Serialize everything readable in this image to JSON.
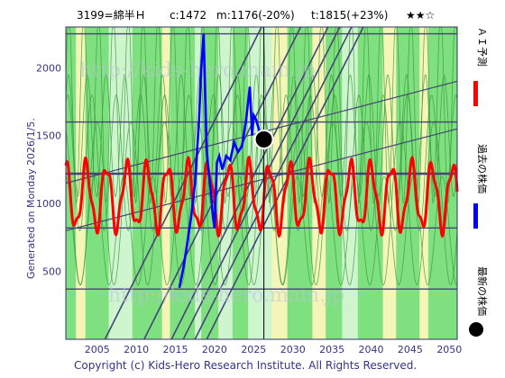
{
  "header": {
    "stock": "3199=綿半Ｈ",
    "current": "c:1472",
    "mid": "m:1176(-20%)",
    "target": "t:1815(+23%)",
    "rating": "★★☆"
  },
  "side_label": "Generated on Monday 2026/1/5.",
  "copyright": "Copyright (c) Kids-Hero Research Institute. All Rights Reserved.",
  "watermark": "http://kids-hero.main.jp",
  "legend": [
    {
      "label": "ＡＩ予測",
      "color": "#ff0000"
    },
    {
      "label": "過去の株価",
      "color": "#0000ff"
    },
    {
      "label": "最新の株価",
      "color": "#000000"
    }
  ],
  "colors": {
    "band_green": "#7ee07e",
    "band_light": "#cff5cf",
    "band_yellow": "#f5f5b8",
    "grid": "#444477",
    "thin_green": "#3a9a3a",
    "axis_text": "#333388"
  },
  "chart_data": {
    "type": "line",
    "xlim": [
      2001,
      2051
    ],
    "ylim": [
      0,
      2300
    ],
    "x_ticks": [
      2005,
      2010,
      2015,
      2020,
      2025,
      2030,
      2035,
      2040,
      2045,
      2050
    ],
    "y_ticks": [
      500,
      1000,
      1500,
      2000
    ],
    "h_levels": [
      370,
      820,
      1220,
      1600,
      2250
    ],
    "series": [
      {
        "name": "過去の株価",
        "color": "#0000ff",
        "x": [
          2015.5,
          2016.0,
          2016.5,
          2017.0,
          2017.5,
          2018.0,
          2018.3,
          2018.6,
          2018.8,
          2019.0,
          2019.2,
          2019.5,
          2019.8,
          2020.0,
          2020.3,
          2020.6,
          2021.0,
          2021.5,
          2022.0,
          2022.5,
          2023.0,
          2023.5,
          2024.0,
          2024.5,
          2024.8,
          2025.0,
          2025.3,
          2025.6,
          2026.0
        ],
        "y": [
          380,
          520,
          700,
          900,
          1150,
          1600,
          2000,
          2250,
          1800,
          1400,
          1250,
          1100,
          900,
          820,
          1300,
          1350,
          1250,
          1350,
          1320,
          1450,
          1380,
          1420,
          1600,
          1860,
          1500,
          1650,
          1620,
          1560,
          1472
        ]
      },
      {
        "name": "ＡＩ予測",
        "color": "#ff0000",
        "x_start": 2001,
        "x_end": 2051,
        "base": 1050,
        "amplitude": 230,
        "period_years": 2.6
      },
      {
        "name": "最新の株価",
        "color": "#000000",
        "x": [
          2026.3
        ],
        "y": [
          1472
        ]
      }
    ]
  }
}
